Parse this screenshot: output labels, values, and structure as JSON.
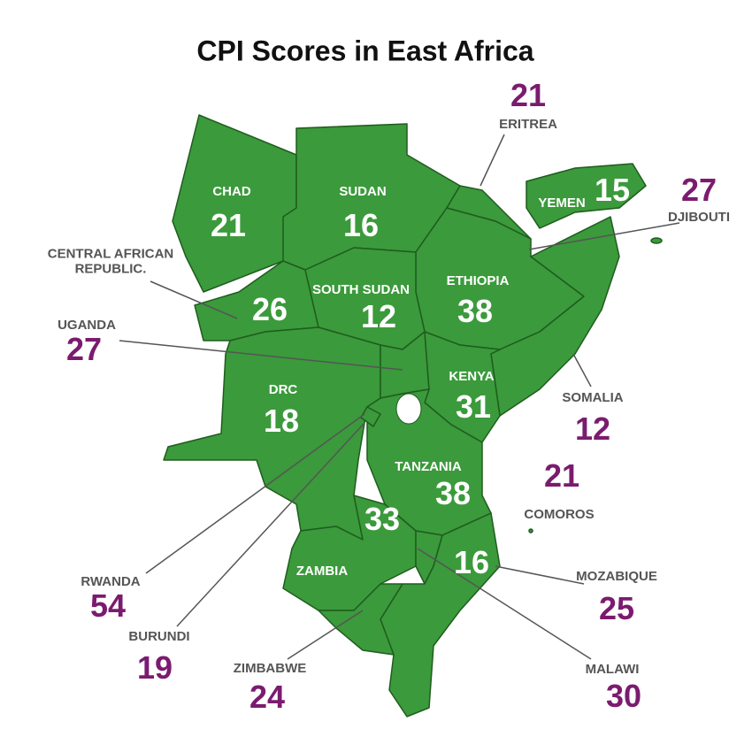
{
  "title": "CPI Scores in East Africa",
  "countries": [
    {
      "name": "ERITREA",
      "score": 21
    },
    {
      "name": "CHAD",
      "score": 21
    },
    {
      "name": "SUDAN",
      "score": 16
    },
    {
      "name": "YEMEN",
      "score": 15
    },
    {
      "name": "DJIBOUTI",
      "score": 27
    },
    {
      "name": "CENTRAL AFRICAN REPUBLIC.",
      "score": 26
    },
    {
      "name": "SOUTH SUDAN",
      "score": 12
    },
    {
      "name": "ETHIOPIA",
      "score": 38
    },
    {
      "name": "UGANDA",
      "score": 27
    },
    {
      "name": "DRC",
      "score": 18
    },
    {
      "name": "KENYA",
      "score": 31
    },
    {
      "name": "SOMALIA",
      "score": 12
    },
    {
      "name": "TANZANIA",
      "score": 38
    },
    {
      "name": "COMOROS",
      "score": 21
    },
    {
      "name": "ZAMBIA",
      "score": 33
    },
    {
      "name": "MOZABIQUE",
      "score": 25
    },
    {
      "name": "RWANDA",
      "score": 54
    },
    {
      "name": "BURUNDI",
      "score": 19
    },
    {
      "name": "ZIMBABWE",
      "score": 24
    },
    {
      "name": "MALAWI",
      "score": 30
    }
  ],
  "extra_scores": [
    16
  ]
}
